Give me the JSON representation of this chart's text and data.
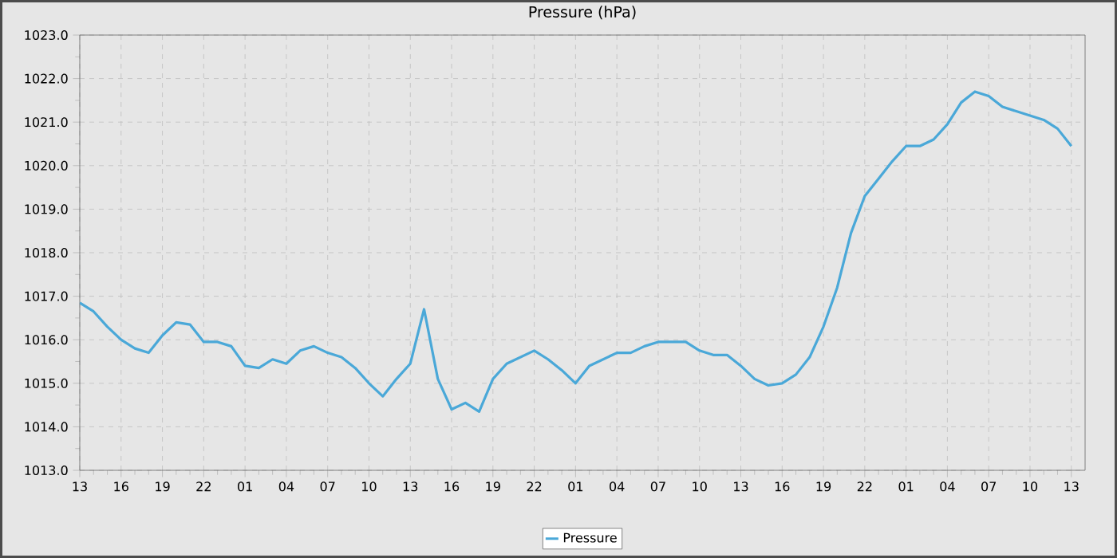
{
  "chart_data": {
    "type": "line",
    "title": "Pressure (hPa)",
    "categories": [
      "13",
      null,
      null,
      "16",
      null,
      null,
      "19",
      null,
      null,
      "22",
      null,
      null,
      "01",
      null,
      null,
      "04",
      null,
      null,
      "07",
      null,
      null,
      "10",
      null,
      null,
      "13",
      null,
      null,
      "16",
      null,
      null,
      "19",
      null,
      null,
      "22",
      null,
      null,
      "01",
      null,
      null,
      "04",
      null,
      null,
      "07",
      null,
      null,
      "10",
      null,
      null,
      "13",
      null,
      null,
      "16",
      null,
      null,
      "19",
      null,
      null,
      "22",
      null,
      null,
      "01",
      null,
      null,
      "04",
      null,
      null,
      "07",
      null,
      null,
      "10",
      null,
      null,
      "13"
    ],
    "series": [
      {
        "name": "Pressure",
        "color": "#4aa8d8",
        "values": [
          1016.85,
          1016.65,
          1016.3,
          1016.0,
          1015.8,
          1015.7,
          1016.1,
          1016.4,
          1016.35,
          1015.95,
          1015.95,
          1015.85,
          1015.4,
          1015.35,
          1015.55,
          1015.45,
          1015.75,
          1015.85,
          1015.7,
          1015.6,
          1015.35,
          1015.0,
          1014.7,
          1015.1,
          1015.45,
          1016.7,
          1015.1,
          1014.4,
          1014.55,
          1014.35,
          1015.1,
          1015.45,
          1015.6,
          1015.75,
          1015.55,
          1015.3,
          1015.0,
          1015.4,
          1015.55,
          1015.7,
          1015.7,
          1015.85,
          1015.95,
          1015.95,
          1015.95,
          1015.75,
          1015.65,
          1015.65,
          1015.4,
          1015.1,
          1014.95,
          1015.0,
          1015.2,
          1015.6,
          1016.3,
          1017.2,
          1018.45,
          1019.3,
          1019.7,
          1020.1,
          1020.45,
          1020.45,
          1020.6,
          1020.95,
          1021.45,
          1021.7,
          1021.6,
          1021.35,
          1021.25,
          1021.15,
          1021.05,
          1020.85,
          1020.45
        ]
      }
    ],
    "ylim": [
      1013,
      1023
    ],
    "yticks": [
      {
        "value": 1013,
        "label": "1013.0"
      },
      {
        "value": 1014,
        "label": "1014.0"
      },
      {
        "value": 1015,
        "label": "1015.0"
      },
      {
        "value": 1016,
        "label": "1016.0"
      },
      {
        "value": 1017,
        "label": "1017.0"
      },
      {
        "value": 1018,
        "label": "1018.0"
      },
      {
        "value": 1019,
        "label": "1019.0"
      },
      {
        "value": 1020,
        "label": "1020.0"
      },
      {
        "value": 1021,
        "label": "1021.0"
      },
      {
        "value": 1022,
        "label": "1022.0"
      },
      {
        "value": 1023,
        "label": "1023.0"
      }
    ],
    "grid": true,
    "legend": "bottom",
    "marker": "none",
    "line_style": "solid"
  }
}
